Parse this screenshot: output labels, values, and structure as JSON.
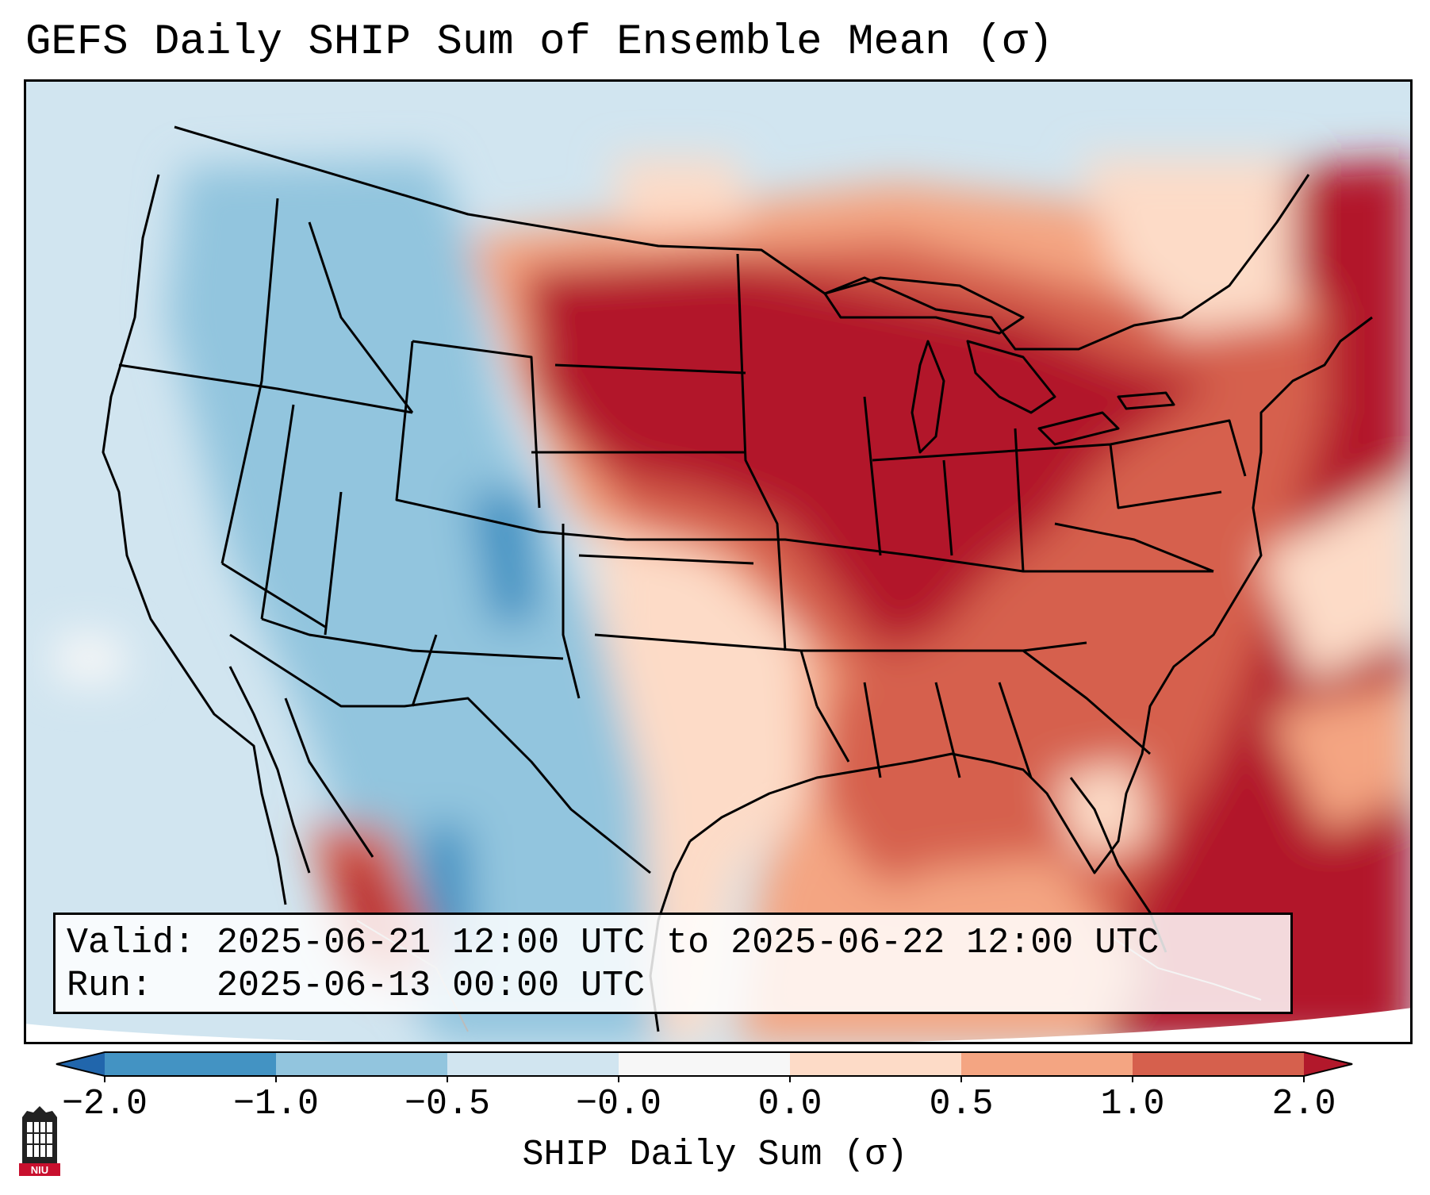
{
  "title": "GEFS Daily SHIP Sum of Ensemble Mean (σ)",
  "info": {
    "valid_label": "Valid:",
    "valid_value": "2025-06-21 12:00 UTC to 2025-06-22 12:00 UTC",
    "run_label": "Run:",
    "run_value": "2025-06-13 00:00 UTC"
  },
  "colorbar": {
    "label": "SHIP Daily Sum (σ)",
    "ticks": [
      "−2.0",
      "−1.0",
      "−0.5",
      "−0.0",
      "0.0",
      "0.5",
      "1.0",
      "2.0"
    ],
    "colors": [
      "#4393c3",
      "#92c5de",
      "#d1e5f0",
      "#f7f7f7",
      "#fddbc7",
      "#f4a582",
      "#d6604d",
      "#b2182b"
    ],
    "extend_low_color": "#2166ac",
    "extend_high_color": "#b2182b"
  },
  "logo": {
    "text": "NIU"
  },
  "map": {
    "projection": "lambert-conformal",
    "region": "CONUS",
    "field": "SHIP daily sum anomaly (σ)",
    "pattern": "negative (blue) over western US and northern Mexico, strongly positive (dark red) over northern plains, Great Lakes, Ohio Valley and western Atlantic; moderate positive over southern plains, Southeast and Gulf of Mexico"
  }
}
